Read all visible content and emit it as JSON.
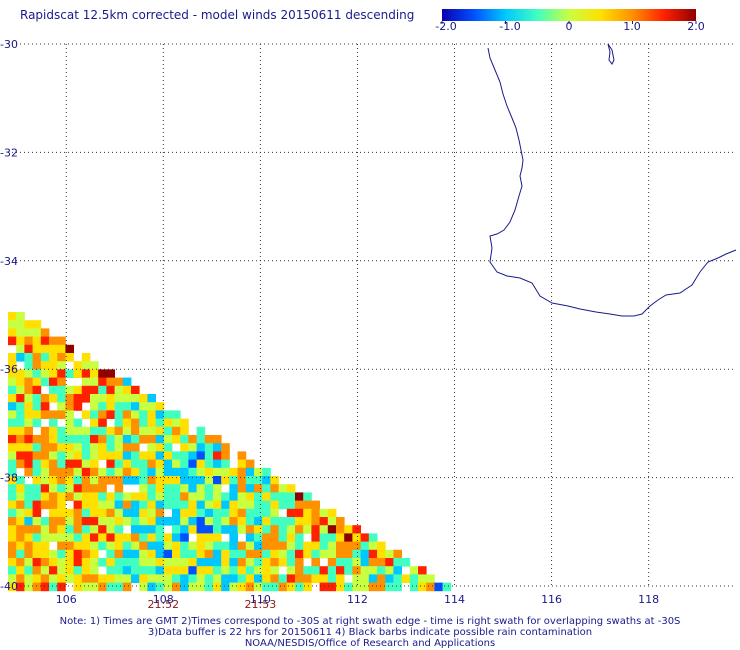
{
  "header": {
    "title": "Rapidscat 12.5km corrected - model winds 20150611 descending"
  },
  "colorbar": {
    "ticks": [
      {
        "value": -2.0,
        "label": "-2.0"
      },
      {
        "value": -1.0,
        "label": "-1.0"
      },
      {
        "value": 0,
        "label": "0"
      },
      {
        "value": 1.0,
        "label": "1.0"
      },
      {
        "value": 2.0,
        "label": "2.0"
      }
    ],
    "colors": [
      "#0a00b0",
      "#0050ff",
      "#00c8ff",
      "#40ffc0",
      "#c8ff40",
      "#ffe000",
      "#ff9000",
      "#ff2000",
      "#900000"
    ]
  },
  "map": {
    "lon_range": [
      104.8,
      119.8
    ],
    "lat_range": [
      -40,
      -30
    ],
    "lon_ticks": [
      106,
      108,
      110,
      112,
      114,
      116,
      118
    ],
    "lat_ticks": [
      -30,
      -32,
      -34,
      -36,
      -38,
      -40
    ],
    "lon_tick_labels": [
      "106",
      "108",
      "110",
      "112",
      "114",
      "116",
      "118"
    ],
    "lat_tick_labels": [
      "-30",
      "-32",
      "-34",
      "-36",
      "-38",
      "-40"
    ],
    "grid": "dotted",
    "coast_color": "#1a1a8c",
    "swath_times": [
      {
        "lon": 108,
        "label": "21:52"
      },
      {
        "lon": 110,
        "label": "21:53"
      }
    ]
  },
  "notes": {
    "line1": "Note: 1) Times are GMT 2)Times correspond to -30S at right swath edge - time is right swath for overlapping swaths at -30S",
    "line2": "3)Data buffer is 22 hrs for 20150611 4) Black barbs indicate possible rain contamination",
    "line3": "NOAA/NESDIS/Office of Research and Applications"
  }
}
